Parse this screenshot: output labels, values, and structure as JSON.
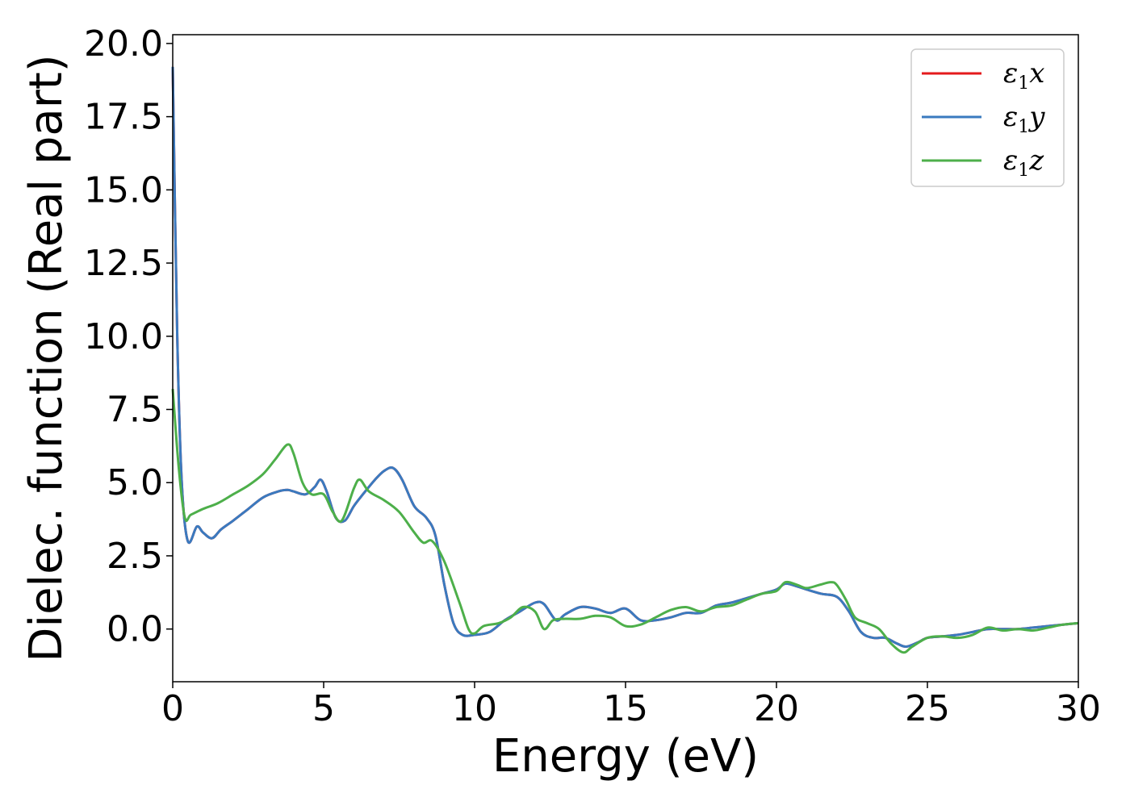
{
  "chart_data": {
    "type": "line",
    "title": "",
    "xlabel": "Energy (eV)",
    "ylabel": "Dielec. function (Real part)",
    "xlim": [
      0,
      30
    ],
    "ylim": [
      -1.8,
      20.3
    ],
    "xticks": [
      0,
      5,
      10,
      15,
      20,
      25,
      30
    ],
    "xtick_labels": [
      "0",
      "5",
      "10",
      "15",
      "20",
      "25",
      "30"
    ],
    "yticks": [
      0,
      2.5,
      5,
      7.5,
      10,
      12.5,
      15,
      17.5,
      20
    ],
    "ytick_labels": [
      "0.0",
      "2.5",
      "5.0",
      "7.5",
      "10.0",
      "12.5",
      "15.0",
      "17.5",
      "20.0"
    ],
    "grid": false,
    "legend_position": "top-right",
    "series": [
      {
        "name": "ε1x",
        "legend_base": "ε",
        "legend_sub": "1",
        "legend_var": "x",
        "color": "#e41a1c",
        "x": [
          0,
          0.15,
          0.3,
          0.5,
          0.8,
          1.0,
          1.3,
          1.6,
          2.0,
          2.5,
          3.0,
          3.5,
          3.8,
          4.0,
          4.4,
          4.7,
          4.9,
          5.1,
          5.4,
          5.7,
          6.0,
          6.3,
          6.7,
          7.0,
          7.3,
          7.6,
          8.0,
          8.4,
          8.7,
          9.0,
          9.3,
          9.6,
          10.0,
          10.5,
          11.0,
          11.5,
          12.0,
          12.3,
          12.7,
          13.0,
          13.5,
          14.0,
          14.5,
          15.0,
          15.5,
          16.0,
          16.5,
          17.0,
          17.5,
          18.0,
          18.5,
          19.0,
          19.5,
          20.0,
          20.3,
          20.7,
          21.0,
          21.5,
          22.0,
          22.4,
          22.8,
          23.2,
          23.6,
          24.0,
          24.3,
          24.7,
          25.0,
          25.5,
          26.0,
          26.5,
          27.0,
          27.5,
          28.0,
          28.5,
          29.0,
          29.5,
          30.0
        ],
        "y": [
          19.2,
          10.0,
          5.0,
          3.0,
          3.5,
          3.3,
          3.1,
          3.4,
          3.7,
          4.1,
          4.5,
          4.7,
          4.75,
          4.7,
          4.6,
          4.85,
          5.1,
          4.7,
          3.8,
          3.7,
          4.2,
          4.6,
          5.1,
          5.4,
          5.5,
          5.1,
          4.2,
          3.8,
          3.2,
          1.5,
          0.2,
          -0.2,
          -0.2,
          -0.1,
          0.3,
          0.6,
          0.9,
          0.85,
          0.3,
          0.5,
          0.75,
          0.7,
          0.55,
          0.7,
          0.3,
          0.3,
          0.4,
          0.55,
          0.55,
          0.8,
          0.9,
          1.05,
          1.2,
          1.35,
          1.55,
          1.45,
          1.35,
          1.2,
          1.1,
          0.6,
          -0.1,
          -0.3,
          -0.3,
          -0.5,
          -0.6,
          -0.45,
          -0.3,
          -0.25,
          -0.2,
          -0.1,
          0.0,
          0.0,
          0.0,
          0.05,
          0.1,
          0.15,
          0.2
        ]
      },
      {
        "name": "ε1y",
        "legend_base": "ε",
        "legend_sub": "1",
        "legend_var": "y",
        "color": "#3a7abf",
        "x": [
          0,
          0.15,
          0.3,
          0.5,
          0.8,
          1.0,
          1.3,
          1.6,
          2.0,
          2.5,
          3.0,
          3.5,
          3.8,
          4.0,
          4.4,
          4.7,
          4.9,
          5.1,
          5.4,
          5.7,
          6.0,
          6.3,
          6.7,
          7.0,
          7.3,
          7.6,
          8.0,
          8.4,
          8.7,
          9.0,
          9.3,
          9.6,
          10.0,
          10.5,
          11.0,
          11.5,
          12.0,
          12.3,
          12.7,
          13.0,
          13.5,
          14.0,
          14.5,
          15.0,
          15.5,
          16.0,
          16.5,
          17.0,
          17.5,
          18.0,
          18.5,
          19.0,
          19.5,
          20.0,
          20.3,
          20.7,
          21.0,
          21.5,
          22.0,
          22.4,
          22.8,
          23.2,
          23.6,
          24.0,
          24.3,
          24.7,
          25.0,
          25.5,
          26.0,
          26.5,
          27.0,
          27.5,
          28.0,
          28.5,
          29.0,
          29.5,
          30.0
        ],
        "y": [
          19.2,
          10.0,
          5.0,
          3.0,
          3.5,
          3.3,
          3.1,
          3.4,
          3.7,
          4.1,
          4.5,
          4.7,
          4.75,
          4.7,
          4.6,
          4.85,
          5.1,
          4.7,
          3.8,
          3.7,
          4.2,
          4.6,
          5.1,
          5.4,
          5.5,
          5.1,
          4.2,
          3.8,
          3.2,
          1.5,
          0.2,
          -0.2,
          -0.2,
          -0.1,
          0.3,
          0.6,
          0.9,
          0.85,
          0.3,
          0.5,
          0.75,
          0.7,
          0.55,
          0.7,
          0.3,
          0.3,
          0.4,
          0.55,
          0.55,
          0.8,
          0.9,
          1.05,
          1.2,
          1.35,
          1.55,
          1.45,
          1.35,
          1.2,
          1.1,
          0.6,
          -0.1,
          -0.3,
          -0.3,
          -0.5,
          -0.6,
          -0.45,
          -0.3,
          -0.25,
          -0.2,
          -0.1,
          0.0,
          0.0,
          0.0,
          0.05,
          0.1,
          0.15,
          0.2
        ]
      },
      {
        "name": "ε1z",
        "legend_base": "ε",
        "legend_sub": "1",
        "legend_var": "z",
        "color": "#4daf4a",
        "x": [
          0,
          0.2,
          0.4,
          0.6,
          1.0,
          1.5,
          2.0,
          2.5,
          3.0,
          3.4,
          3.8,
          4.0,
          4.3,
          4.6,
          5.0,
          5.3,
          5.6,
          6.0,
          6.2,
          6.5,
          7.0,
          7.5,
          8.0,
          8.3,
          8.6,
          9.0,
          9.5,
          9.8,
          10.0,
          10.3,
          10.8,
          11.2,
          11.6,
          12.0,
          12.3,
          12.6,
          13.0,
          13.5,
          14.0,
          14.5,
          15.0,
          15.5,
          16.0,
          16.5,
          17.0,
          17.5,
          18.0,
          18.5,
          19.0,
          19.5,
          20.0,
          20.3,
          20.7,
          21.0,
          21.4,
          21.8,
          22.0,
          22.3,
          22.6,
          23.0,
          23.4,
          23.8,
          24.2,
          24.5,
          25.0,
          25.5,
          26.0,
          26.5,
          27.0,
          27.5,
          28.0,
          28.5,
          29.0,
          29.5,
          30.0
        ],
        "y": [
          8.2,
          5.5,
          3.8,
          3.9,
          4.1,
          4.3,
          4.6,
          4.9,
          5.3,
          5.8,
          6.3,
          6.0,
          5.0,
          4.6,
          4.6,
          4.0,
          3.7,
          4.8,
          5.1,
          4.7,
          4.4,
          4.0,
          3.3,
          2.95,
          3.0,
          2.3,
          0.9,
          0.0,
          -0.15,
          0.1,
          0.2,
          0.4,
          0.75,
          0.6,
          0.0,
          0.3,
          0.35,
          0.35,
          0.45,
          0.4,
          0.1,
          0.15,
          0.4,
          0.65,
          0.75,
          0.6,
          0.75,
          0.8,
          1.0,
          1.2,
          1.3,
          1.6,
          1.5,
          1.4,
          1.5,
          1.6,
          1.5,
          1.0,
          0.4,
          0.2,
          0.0,
          -0.5,
          -0.8,
          -0.6,
          -0.3,
          -0.25,
          -0.3,
          -0.2,
          0.05,
          -0.05,
          0.0,
          -0.05,
          0.05,
          0.15,
          0.2
        ]
      }
    ]
  }
}
